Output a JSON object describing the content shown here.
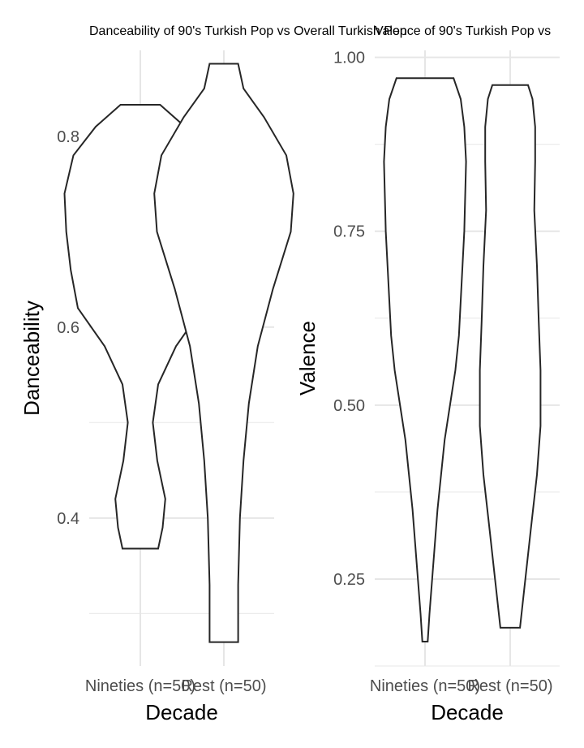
{
  "chart_data": [
    {
      "type": "violin",
      "title": "Danceability of 90's Turkish Pop vs Overall Turkish Pop",
      "xlabel": "Decade",
      "ylabel": "Danceability",
      "categories": [
        "Nineties (n=50)",
        "Rest (n=50)"
      ],
      "ylim": [
        0.245,
        0.89
      ],
      "yticks": [
        0.4,
        0.6,
        0.8
      ],
      "ytick_labels": [
        "0.4",
        "0.6",
        "0.8"
      ],
      "grid": true,
      "violins": [
        {
          "category": "Nineties (n=50)",
          "min": 0.368,
          "max": 0.833,
          "profile": [
            [
              0.368,
              0.02
            ],
            [
              0.39,
              0.025
            ],
            [
              0.42,
              0.028
            ],
            [
              0.46,
              0.019
            ],
            [
              0.5,
              0.014
            ],
            [
              0.54,
              0.02
            ],
            [
              0.58,
              0.04
            ],
            [
              0.62,
              0.07
            ],
            [
              0.66,
              0.078
            ],
            [
              0.7,
              0.083
            ],
            [
              0.74,
              0.085
            ],
            [
              0.78,
              0.075
            ],
            [
              0.81,
              0.05
            ],
            [
              0.833,
              0.0222
            ]
          ]
        },
        {
          "category": "Rest (n=50)",
          "min": 0.27,
          "max": 0.876,
          "profile": [
            [
              0.27,
              0.016
            ],
            [
              0.33,
              0.016
            ],
            [
              0.4,
              0.018
            ],
            [
              0.46,
              0.022
            ],
            [
              0.52,
              0.028
            ],
            [
              0.58,
              0.038
            ],
            [
              0.64,
              0.055
            ],
            [
              0.7,
              0.075
            ],
            [
              0.74,
              0.078
            ],
            [
              0.78,
              0.07
            ],
            [
              0.82,
              0.045
            ],
            [
              0.85,
              0.022
            ],
            [
              0.876,
              0.016
            ]
          ]
        }
      ]
    },
    {
      "type": "violin",
      "title": "Valence of 90's Turkish Pop vs",
      "xlabel": "Decade",
      "ylabel": "Valence",
      "categories": [
        "Nineties (n=50)",
        "Rest (n=50)"
      ],
      "ylim": [
        0.125,
        1.01
      ],
      "yticks": [
        0.25,
        0.5,
        0.75,
        1.0
      ],
      "ytick_labels": [
        "0.25",
        "0.50",
        "0.75",
        "1.00"
      ],
      "grid": true,
      "violins": [
        {
          "category": "Nineties (n=50)",
          "min": 0.16,
          "max": 0.97,
          "profile": [
            [
              0.16,
              0.003
            ],
            [
              0.2,
              0.005
            ],
            [
              0.25,
              0.008
            ],
            [
              0.3,
              0.011
            ],
            [
              0.35,
              0.014
            ],
            [
              0.4,
              0.018
            ],
            [
              0.45,
              0.022
            ],
            [
              0.5,
              0.028
            ],
            [
              0.55,
              0.034
            ],
            [
              0.6,
              0.038
            ],
            [
              0.65,
              0.04
            ],
            [
              0.7,
              0.042
            ],
            [
              0.75,
              0.044
            ],
            [
              0.8,
              0.045
            ],
            [
              0.85,
              0.046
            ],
            [
              0.9,
              0.044
            ],
            [
              0.94,
              0.04
            ],
            [
              0.97,
              0.032
            ]
          ]
        },
        {
          "category": "Rest (n=50)",
          "min": 0.18,
          "max": 0.96,
          "profile": [
            [
              0.18,
              0.011
            ],
            [
              0.25,
              0.017
            ],
            [
              0.32,
              0.023
            ],
            [
              0.4,
              0.03
            ],
            [
              0.47,
              0.034
            ],
            [
              0.55,
              0.034
            ],
            [
              0.62,
              0.032
            ],
            [
              0.7,
              0.03
            ],
            [
              0.78,
              0.027
            ],
            [
              0.85,
              0.028
            ],
            [
              0.9,
              0.028
            ],
            [
              0.94,
              0.025
            ],
            [
              0.96,
              0.02
            ]
          ]
        }
      ]
    }
  ]
}
